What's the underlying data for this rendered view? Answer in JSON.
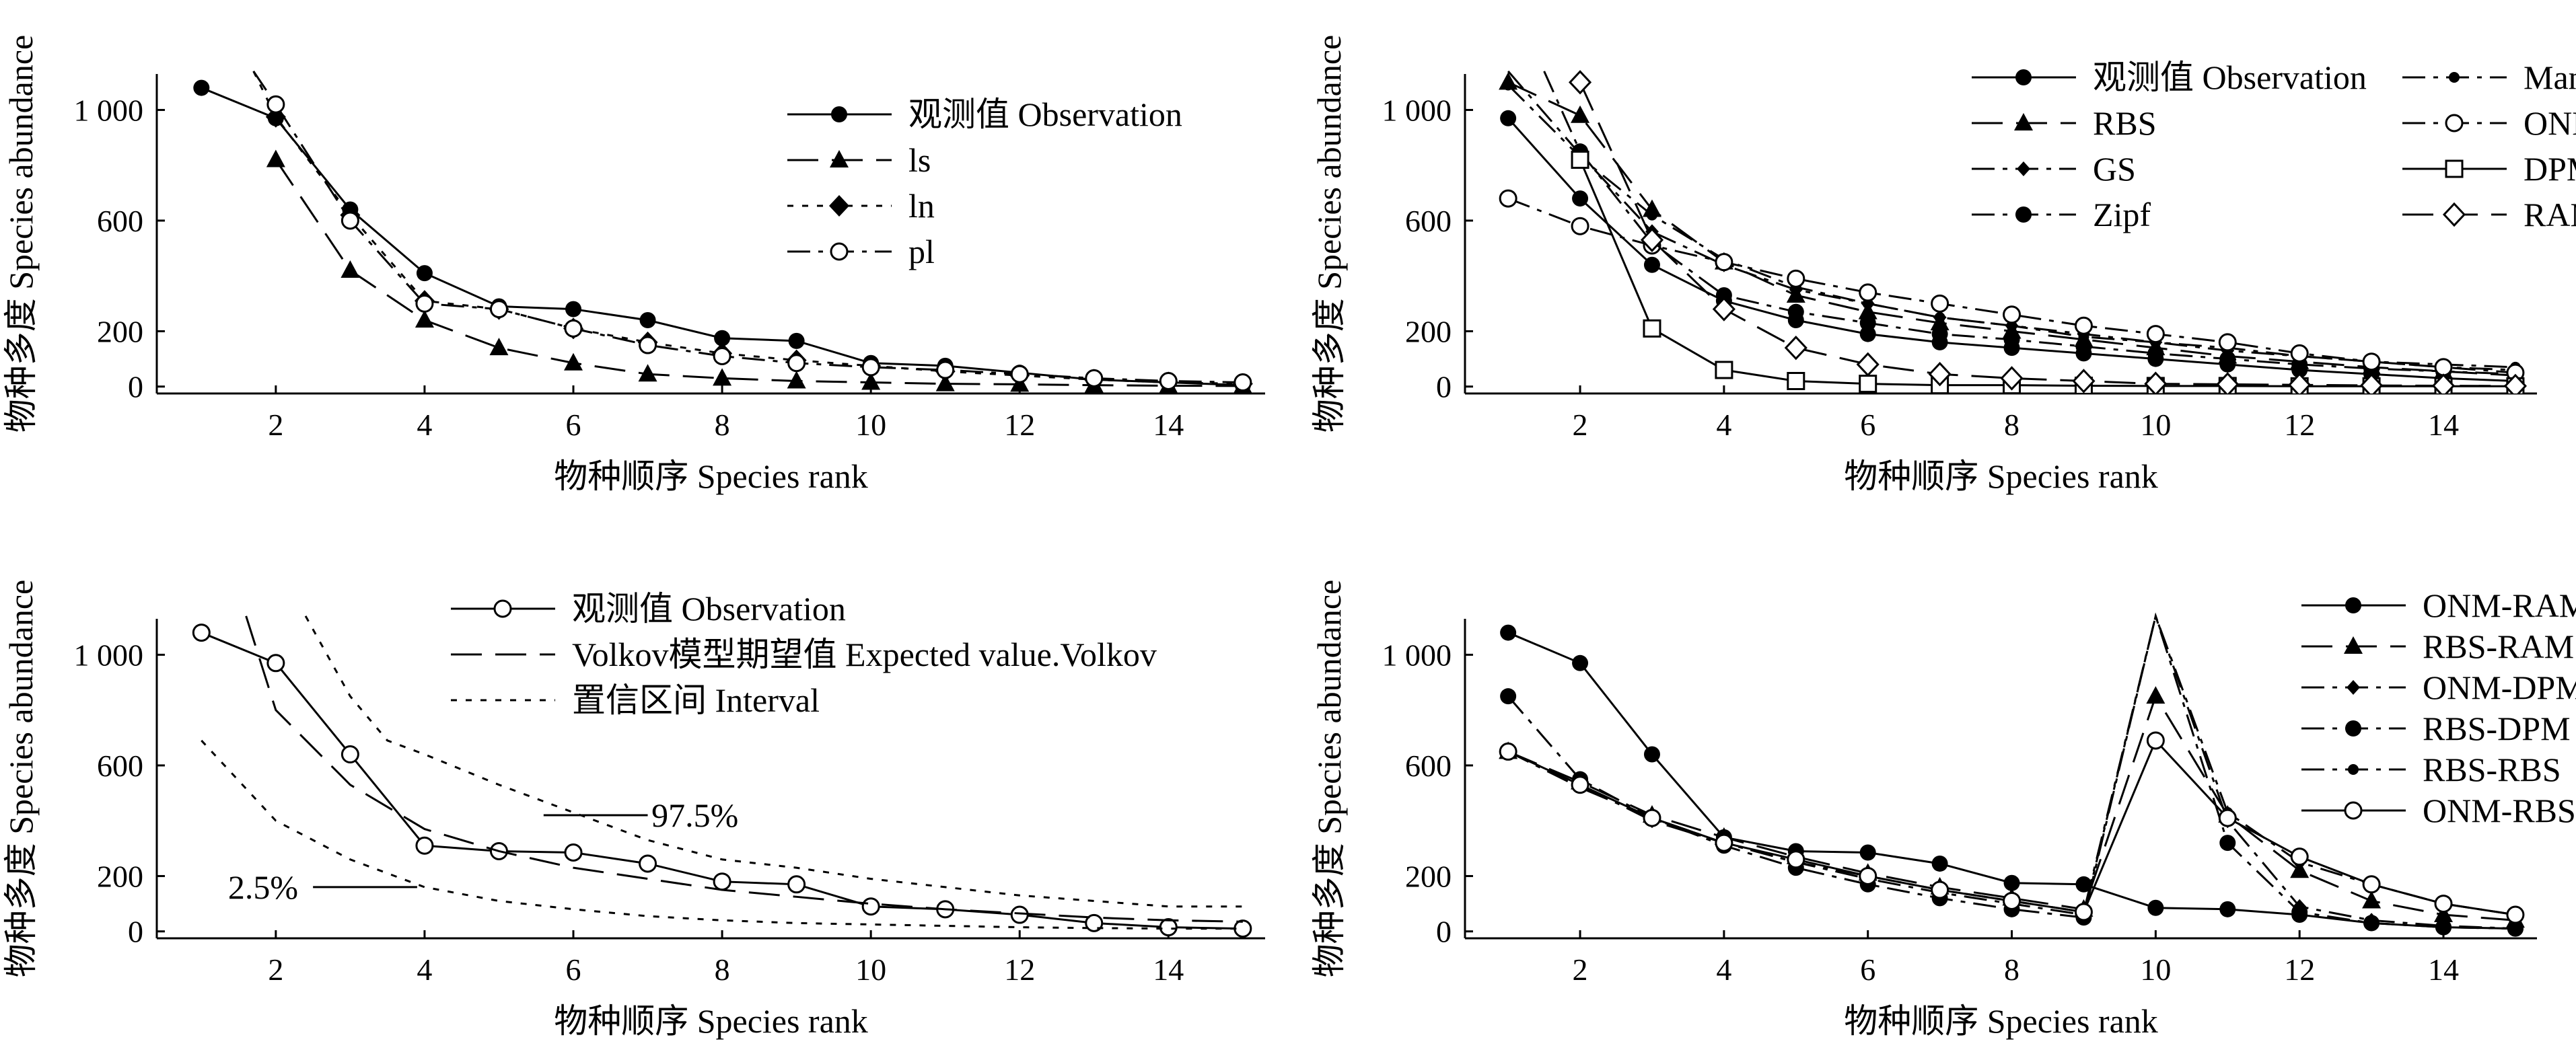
{
  "chart_data": [
    {
      "type": "line",
      "xlabel": "物种顺序  Species rank",
      "ylabel": "物种多度  Species abundance",
      "xlim": [
        0.4,
        15.3
      ],
      "ylim": [
        -25,
        1130
      ],
      "xticks": [
        2,
        4,
        6,
        8,
        10,
        12,
        14
      ],
      "yticks": [
        0,
        200,
        600,
        1000
      ],
      "ytick_labels": [
        "0",
        "200",
        "600",
        "1 000"
      ],
      "legend_position": "top-right",
      "series": [
        {
          "name": "观测值  Observation",
          "dash": "solid",
          "marker": "filled-circle",
          "x": [
            1,
            2,
            3,
            4,
            5,
            6,
            7,
            8,
            9,
            10,
            11,
            12,
            13,
            14,
            15
          ],
          "y": [
            1080,
            970,
            640,
            410,
            290,
            280,
            240,
            175,
            165,
            85,
            75,
            50,
            25,
            15,
            5
          ]
        },
        {
          "name": "ls",
          "dash": "longdash",
          "marker": "filled-triangle",
          "x": [
            2,
            3,
            4,
            5,
            6,
            7,
            8,
            9,
            10,
            11,
            12,
            13,
            14,
            15
          ],
          "y": [
            820,
            420,
            240,
            140,
            85,
            45,
            30,
            20,
            15,
            10,
            8,
            5,
            3,
            2
          ]
        },
        {
          "name": "ln",
          "dash": "dotted",
          "marker": "filled-diamond",
          "x": [
            1.7,
            2,
            3,
            4,
            5,
            6,
            7,
            8,
            9,
            10,
            11,
            12,
            13,
            14,
            15
          ],
          "y": [
            1140,
            975,
            620,
            310,
            280,
            210,
            160,
            120,
            95,
            75,
            55,
            40,
            25,
            15,
            10
          ]
        },
        {
          "name": "pl",
          "dash": "dashdot",
          "marker": "open-circle",
          "x": [
            1.7,
            2,
            3,
            4,
            5,
            6,
            7,
            8,
            9,
            10,
            11,
            12,
            13,
            14,
            15
          ],
          "y": [
            1140,
            1020,
            600,
            300,
            280,
            210,
            150,
            110,
            85,
            70,
            60,
            45,
            30,
            20,
            15
          ]
        }
      ]
    },
    {
      "type": "line",
      "xlabel": "物种顺序  Species rank",
      "ylabel": "物种多度  Species abundance",
      "xlim": [
        0.4,
        15.3
      ],
      "ylim": [
        -25,
        1130
      ],
      "xticks": [
        2,
        4,
        6,
        8,
        10,
        12,
        14
      ],
      "yticks": [
        0,
        200,
        600,
        1000
      ],
      "ytick_labels": [
        "0",
        "200",
        "600",
        "1 000"
      ],
      "legend_position": "top-right",
      "series": [
        {
          "name": "观测值  Observation",
          "dash": "solid",
          "marker": "filled-circle",
          "x": [
            1,
            2,
            3,
            4,
            5,
            6,
            7,
            8,
            9,
            10,
            11,
            12,
            13,
            14,
            15
          ],
          "y": [
            970,
            680,
            440,
            310,
            240,
            190,
            160,
            140,
            120,
            100,
            80,
            60,
            45,
            30,
            20
          ]
        },
        {
          "name": "RBS",
          "dash": "longdash",
          "marker": "filled-triangle",
          "x": [
            1,
            2,
            3,
            4,
            5,
            6,
            7,
            8,
            9,
            10,
            11,
            12,
            13,
            14,
            15
          ],
          "y": [
            1100,
            980,
            640,
            450,
            330,
            270,
            230,
            200,
            170,
            140,
            110,
            90,
            70,
            55,
            40
          ]
        },
        {
          "name": "GS",
          "dash": "dashdot",
          "marker": "filled-small-diamond",
          "x": [
            1,
            2,
            3,
            4,
            5,
            6,
            7,
            8,
            9,
            10,
            11,
            12,
            13,
            14,
            15
          ],
          "y": [
            1140,
            840,
            560,
            440,
            350,
            300,
            250,
            220,
            190,
            160,
            130,
            110,
            90,
            70,
            60
          ]
        },
        {
          "name": "Zipf",
          "dash": "dashdot",
          "marker": "filled-circle",
          "x": [
            1.5,
            2,
            3,
            4,
            5,
            6,
            7,
            8,
            9,
            10,
            11,
            12,
            13,
            14,
            15
          ],
          "y": [
            1140,
            850,
            520,
            330,
            270,
            230,
            190,
            170,
            145,
            120,
            100,
            80,
            65,
            55,
            45
          ]
        },
        {
          "name": "Mand",
          "dash": "dashdot",
          "marker": "small-filled-circle",
          "x": [
            1,
            2,
            3,
            4,
            5,
            6,
            7,
            8,
            9,
            10,
            11,
            12,
            13,
            14,
            15
          ],
          "y": [
            1090,
            830,
            620,
            460,
            360,
            300,
            250,
            220,
            180,
            160,
            140,
            110,
            90,
            80,
            70
          ]
        },
        {
          "name": "ONM",
          "dash": "dashdot",
          "marker": "open-circle",
          "x": [
            1,
            2,
            3,
            4,
            5,
            6,
            7,
            8,
            9,
            10,
            11,
            12,
            13,
            14,
            15
          ],
          "y": [
            680,
            580,
            510,
            450,
            390,
            340,
            300,
            260,
            220,
            190,
            160,
            120,
            90,
            70,
            50
          ]
        },
        {
          "name": "DPM",
          "dash": "solid",
          "marker": "open-square",
          "x": [
            2,
            3,
            4,
            5,
            6,
            7,
            8,
            9,
            10,
            11,
            12,
            13,
            14,
            15
          ],
          "y": [
            820,
            210,
            60,
            20,
            10,
            5,
            5,
            3,
            2,
            2,
            1,
            1,
            1,
            1
          ]
        },
        {
          "name": "RAM",
          "dash": "longdash",
          "marker": "open-diamond",
          "x": [
            2,
            3,
            4,
            5,
            6,
            7,
            8,
            9,
            10,
            11,
            12,
            13,
            14,
            15
          ],
          "y": [
            1100,
            530,
            280,
            140,
            80,
            45,
            30,
            20,
            10,
            8,
            6,
            4,
            3,
            2
          ]
        }
      ]
    },
    {
      "type": "line",
      "xlabel": "物种顺序  Species rank",
      "ylabel": "物种多度  Species abundance",
      "xlim": [
        0.4,
        15.3
      ],
      "ylim": [
        -25,
        1130
      ],
      "xticks": [
        2,
        4,
        6,
        8,
        10,
        12,
        14
      ],
      "yticks": [
        0,
        200,
        600,
        1000
      ],
      "ytick_labels": [
        "0",
        "200",
        "600",
        "1 000"
      ],
      "legend_position": "top-right",
      "annotations": [
        "97.5%",
        "2.5%"
      ],
      "series": [
        {
          "name": "观测值  Observation",
          "dash": "solid",
          "marker": "open-circle",
          "x": [
            1,
            2,
            3,
            4,
            5,
            6,
            7,
            8,
            9,
            10,
            11,
            12,
            13,
            14,
            15
          ],
          "y": [
            1080,
            970,
            640,
            310,
            290,
            285,
            245,
            180,
            170,
            90,
            80,
            60,
            30,
            15,
            10
          ]
        },
        {
          "name": "Volkov模型期望值  Expected value.Volkov",
          "dash": "longdash",
          "marker": "none",
          "x": [
            1.6,
            2,
            3,
            4,
            5,
            6,
            7,
            8,
            9,
            10,
            11,
            12,
            13,
            14,
            15
          ],
          "y": [
            1140,
            800,
            530,
            370,
            290,
            230,
            190,
            150,
            125,
            100,
            80,
            65,
            50,
            40,
            35
          ]
        },
        {
          "name": "置信区间  Interval (97.5%)",
          "dash": "dotted",
          "marker": "none",
          "x": [
            2.4,
            3,
            3.5,
            4,
            5,
            6,
            7,
            8,
            9,
            10,
            11,
            12,
            13,
            14,
            15
          ],
          "y": [
            1140,
            850,
            690,
            640,
            530,
            430,
            330,
            260,
            230,
            190,
            160,
            130,
            110,
            90,
            90
          ]
        },
        {
          "name": "置信区间  Interval (2.5%)",
          "dash": "dotted",
          "marker": "none",
          "x": [
            1,
            2,
            3,
            4,
            5,
            6,
            7,
            8,
            9,
            10,
            11,
            12,
            13,
            14,
            15
          ],
          "y": [
            690,
            400,
            260,
            160,
            110,
            80,
            55,
            40,
            30,
            25,
            20,
            15,
            12,
            10,
            10
          ]
        }
      ]
    },
    {
      "type": "line",
      "xlabel": "物种顺序  Species rank",
      "ylabel": "物种多度  Species abundance",
      "xlim": [
        0.4,
        15.3
      ],
      "ylim": [
        -25,
        1130
      ],
      "xticks": [
        2,
        4,
        6,
        8,
        10,
        12,
        14
      ],
      "yticks": [
        0,
        200,
        600,
        1000
      ],
      "ytick_labels": [
        "0",
        "200",
        "600",
        "1 000"
      ],
      "legend_position": "top-right",
      "series": [
        {
          "name": "ONM-RAM",
          "dash": "solid",
          "marker": "filled-circle",
          "x": [
            1,
            2,
            3,
            4,
            5,
            6,
            7,
            8,
            9,
            10,
            11,
            12,
            13,
            14,
            15
          ],
          "y": [
            1080,
            970,
            640,
            340,
            290,
            285,
            245,
            175,
            170,
            85,
            80,
            60,
            30,
            15,
            10
          ]
        },
        {
          "name": "RBS-RAM",
          "dash": "longdash",
          "marker": "filled-triangle",
          "x": [
            1,
            2,
            3,
            4,
            5,
            6,
            7,
            8,
            9,
            10,
            11,
            12,
            13,
            14,
            15
          ],
          "y": [
            650,
            540,
            420,
            340,
            270,
            210,
            160,
            120,
            80,
            850,
            420,
            220,
            110,
            60,
            40
          ]
        },
        {
          "name": "ONM-DPM",
          "dash": "dashdot",
          "marker": "filled-small-diamond",
          "x": [
            1,
            2,
            3,
            4,
            5,
            6,
            7,
            8,
            9,
            10,
            11,
            12,
            13,
            14,
            15
          ],
          "y": [
            650,
            530,
            400,
            320,
            250,
            190,
            140,
            100,
            60,
            1140,
            400,
            90,
            40,
            20,
            10
          ]
        },
        {
          "name": "RBS-DPM",
          "dash": "dashdot",
          "marker": "filled-circle",
          "x": [
            1,
            2,
            3,
            4,
            5,
            6,
            7,
            8,
            9,
            10,
            11,
            12,
            13,
            14,
            15
          ],
          "y": [
            850,
            550,
            410,
            310,
            230,
            170,
            120,
            80,
            50,
            1140,
            320,
            70,
            30,
            15,
            10
          ]
        },
        {
          "name": "RBS-RBS",
          "dash": "dashdot",
          "marker": "small-filled-circle",
          "x": [
            1,
            2,
            3,
            4,
            5,
            6,
            7,
            8,
            9,
            10,
            11,
            12,
            13,
            14,
            15
          ],
          "y": [
            650,
            520,
            410,
            320,
            250,
            200,
            150,
            110,
            70,
            1140,
            430,
            250,
            170,
            100,
            60
          ]
        },
        {
          "name": "ONM-RBS",
          "dash": "solid",
          "marker": "open-circle",
          "x": [
            1,
            2,
            3,
            4,
            5,
            6,
            7,
            8,
            9,
            10,
            11,
            12,
            13,
            14,
            15
          ],
          "y": [
            650,
            530,
            410,
            320,
            260,
            200,
            150,
            110,
            70,
            690,
            410,
            270,
            170,
            100,
            60
          ]
        }
      ]
    }
  ]
}
